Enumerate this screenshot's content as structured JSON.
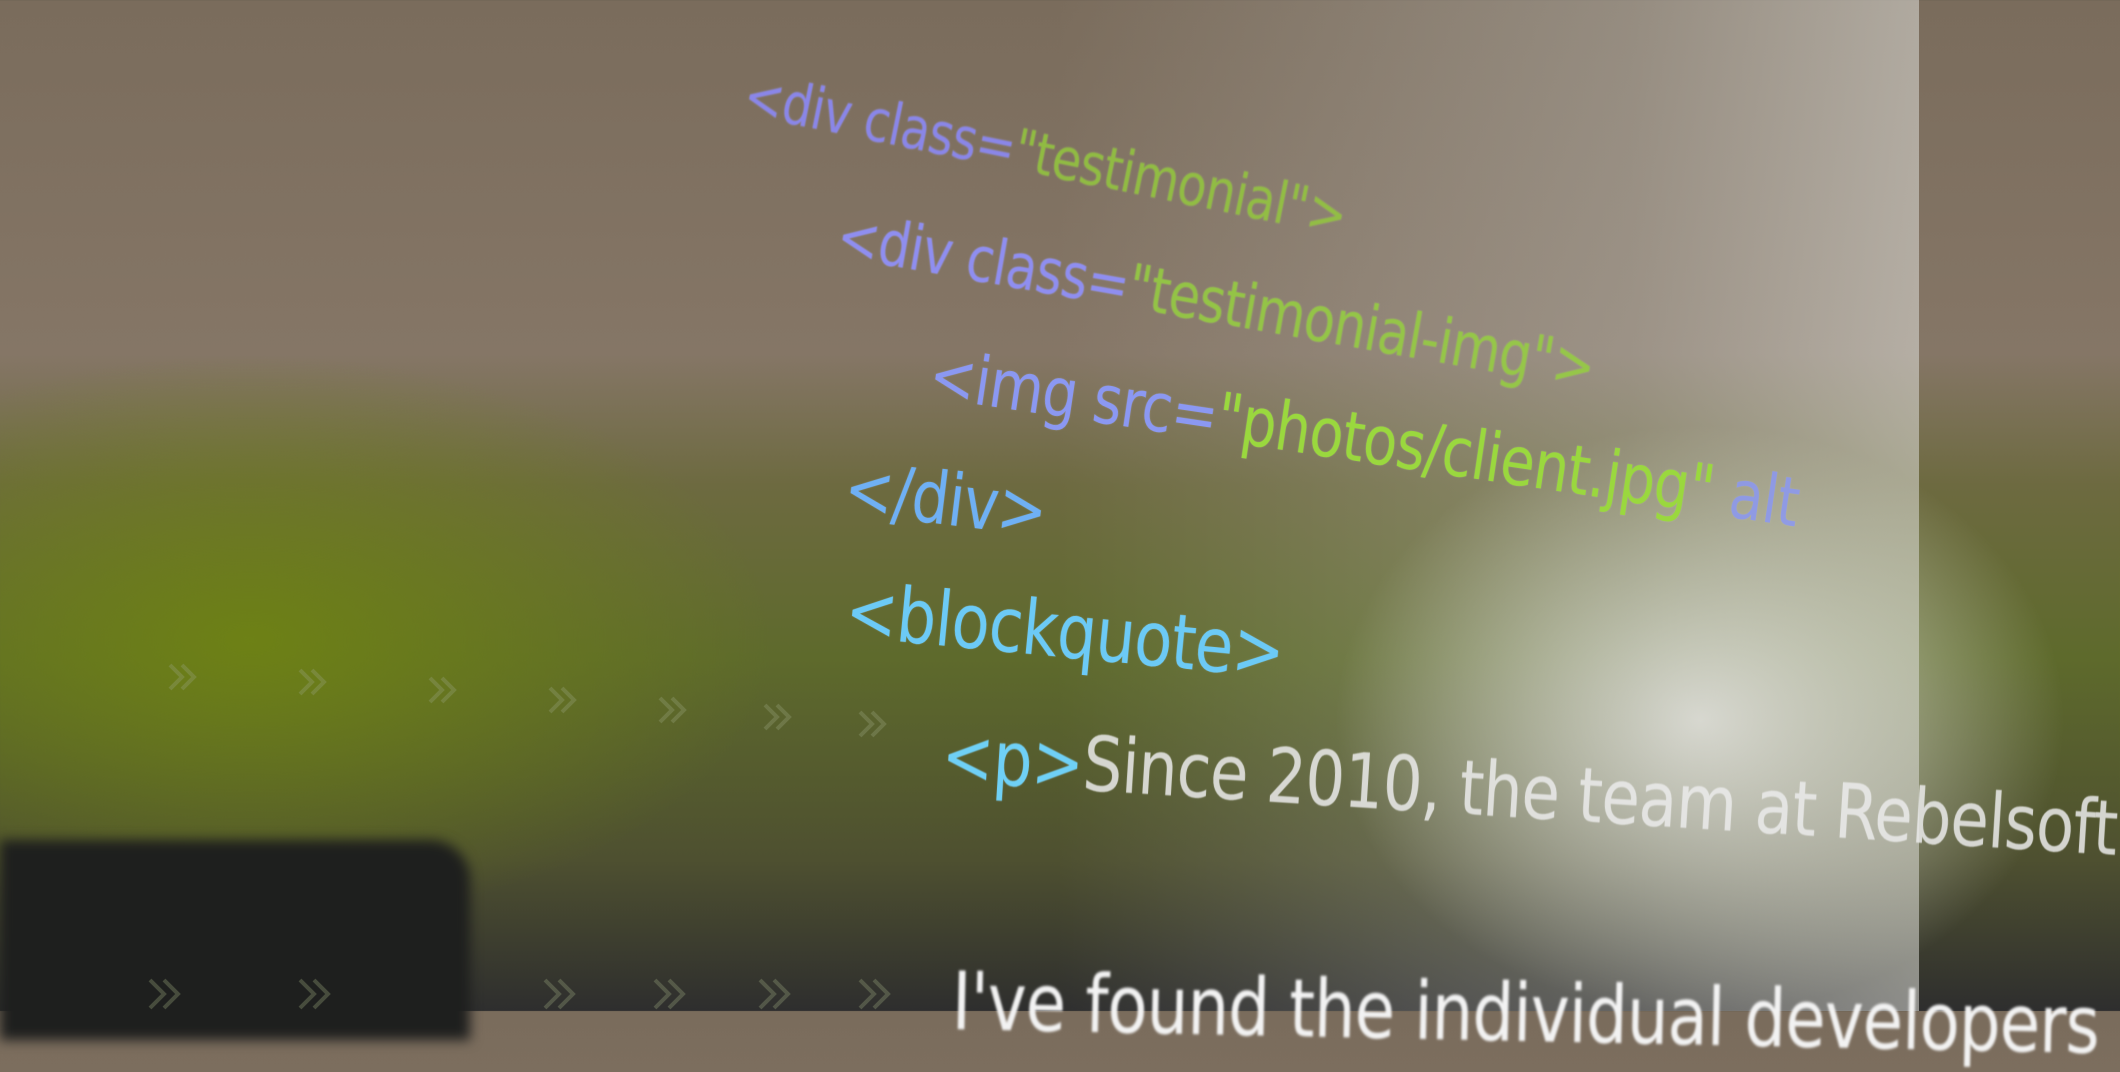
{
  "code": {
    "lines": [
      {
        "tokens": [
          {
            "text": "<div class=",
            "color": "#8a86e8"
          },
          {
            "text": "\"testimonial\">",
            "color": "#93c83e"
          }
        ]
      },
      {
        "tokens": [
          {
            "text": "<div class=",
            "color": "#8f8ef0"
          },
          {
            "text": "\"testimonial-img\">",
            "color": "#96d040"
          }
        ]
      },
      {
        "tokens": [
          {
            "text": "<img src=",
            "color": "#8b98f2"
          },
          {
            "text": "\"photos/client.jpg\"",
            "color": "#9ad83e"
          },
          {
            "text": " alt",
            "color": "#8b98f2"
          }
        ]
      },
      {
        "tokens": [
          {
            "text": "</div>",
            "color": "#6fb0f4"
          }
        ]
      },
      {
        "tokens": [
          {
            "text": "<blockquote>",
            "color": "#6ccaf6"
          }
        ]
      },
      {
        "tokens": [
          {
            "text": "<p>",
            "color": "#6fd0f6"
          },
          {
            "text": "Since 2010, the team at Rebelsoft",
            "color": "#ececec"
          }
        ]
      },
      {
        "tokens": [
          {
            "text": "I've found the individual developers",
            "color": "#f2f2f2"
          }
        ]
      }
    ]
  }
}
